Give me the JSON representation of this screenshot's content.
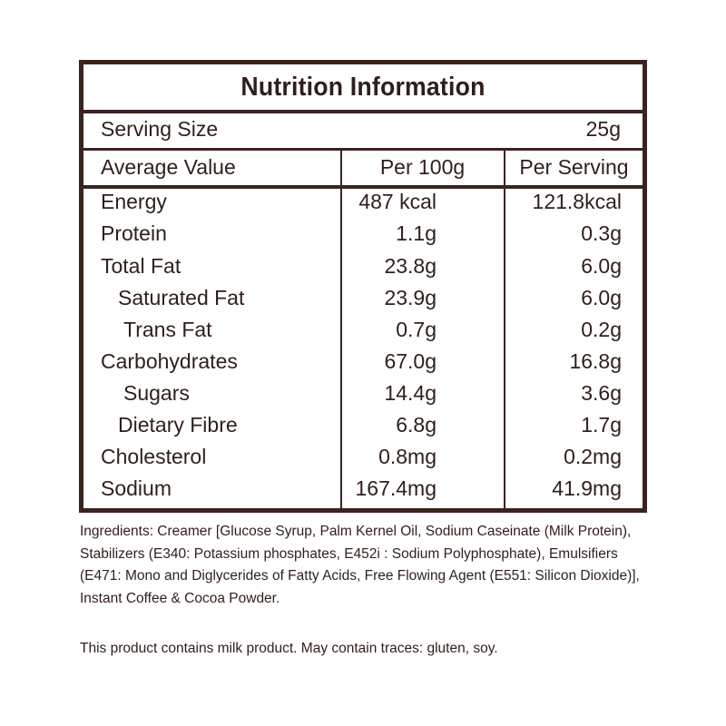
{
  "title": "Nutrition Information",
  "serving": {
    "label": "Serving Size",
    "value": "25g"
  },
  "headers": {
    "average": "Average Value",
    "per100": "Per 100g",
    "perServing": "Per Serving"
  },
  "rows": [
    {
      "name": "Energy",
      "per100": "487 kcal",
      "perServing": "121.8kcal",
      "indent": 0
    },
    {
      "name": "Protein",
      "per100": "1.1g",
      "perServing": "0.3g",
      "indent": 0
    },
    {
      "name": "Total Fat",
      "per100": "23.8g",
      "perServing": "6.0g",
      "indent": 0
    },
    {
      "name": "Saturated Fat",
      "per100": "23.9g",
      "perServing": "6.0g",
      "indent": 1
    },
    {
      "name": "Trans Fat",
      "per100": "0.7g",
      "perServing": "0.2g",
      "indent": 2
    },
    {
      "name": "Carbohydrates",
      "per100": "67.0g",
      "perServing": "16.8g",
      "indent": 0
    },
    {
      "name": "Sugars",
      "per100": "14.4g",
      "perServing": "3.6g",
      "indent": 2
    },
    {
      "name": "Dietary Fibre",
      "per100": "6.8g",
      "perServing": "1.7g",
      "indent": 1
    },
    {
      "name": "Cholesterol",
      "per100": "0.8mg",
      "perServing": "0.2mg",
      "indent": 0
    },
    {
      "name": "Sodium",
      "per100": "167.4mg",
      "perServing": "41.9mg",
      "indent": 0
    }
  ],
  "ingredients": "Ingredients: Creamer [Glucose Syrup, Palm Kernel Oil, Sodium Caseinate (Milk Protein), Stabilizers (E340: Potassium phosphates, E452i : Sodium Polyphosphate), Emulsifiers (E471: Mono and Diglycerides of Fatty Acids, Free Flowing Agent (E551: Silicon Dioxide)], Instant Coffee & Cocoa Powder.",
  "allergen_notice": "This product contains milk product. May contain traces: gluten, soy."
}
